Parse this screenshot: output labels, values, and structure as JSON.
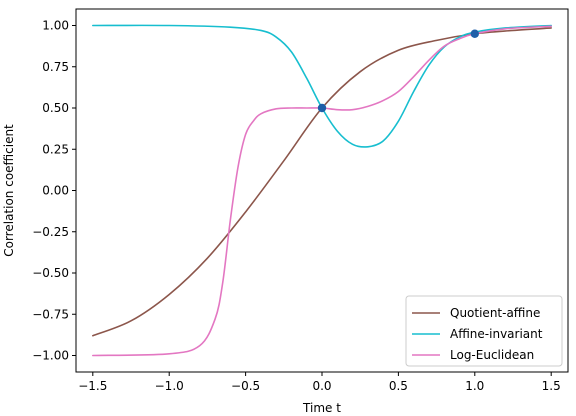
{
  "chart_data": {
    "type": "line",
    "title": "",
    "xlabel": "Time t",
    "ylabel": "Correlation coefficient",
    "xlim": [
      -1.61,
      1.61
    ],
    "ylim": [
      -1.1,
      1.1
    ],
    "xticks": [
      -1.5,
      -1.0,
      -0.5,
      0.0,
      0.5,
      1.0,
      1.5
    ],
    "xtick_labels": [
      "−1.5",
      "−1.0",
      "−0.5",
      "0.0",
      "0.5",
      "1.0",
      "1.5"
    ],
    "yticks": [
      -1.0,
      -0.75,
      -0.5,
      -0.25,
      0.0,
      0.25,
      0.5,
      0.75,
      1.0
    ],
    "ytick_labels": [
      "−1.00",
      "−0.75",
      "−0.50",
      "−0.25",
      "0.00",
      "0.25",
      "0.50",
      "0.75",
      "1.00"
    ],
    "grid": false,
    "legend_position": "bottom-right",
    "series": [
      {
        "name": "Quotient-affine",
        "color": "#8c564b",
        "x": [
          -1.5,
          -1.25,
          -1.0,
          -0.75,
          -0.5,
          -0.25,
          0.0,
          0.25,
          0.5,
          0.75,
          1.0,
          1.25,
          1.5
        ],
        "y": [
          -0.88,
          -0.79,
          -0.63,
          -0.41,
          -0.13,
          0.18,
          0.5,
          0.72,
          0.85,
          0.91,
          0.95,
          0.97,
          0.985
        ]
      },
      {
        "name": "Affine-invariant",
        "color": "#17becf",
        "x": [
          -1.5,
          -1.0,
          -0.6,
          -0.4,
          -0.3,
          -0.2,
          -0.1,
          0.0,
          0.1,
          0.2,
          0.3,
          0.4,
          0.5,
          0.6,
          0.7,
          0.8,
          0.9,
          1.0,
          1.2,
          1.5
        ],
        "y": [
          1.0,
          1.0,
          0.99,
          0.97,
          0.93,
          0.84,
          0.68,
          0.5,
          0.36,
          0.28,
          0.265,
          0.3,
          0.42,
          0.6,
          0.76,
          0.87,
          0.93,
          0.96,
          0.985,
          1.0
        ]
      },
      {
        "name": "Log-Euclidean",
        "color": "#e377c2",
        "x": [
          -1.5,
          -1.0,
          -0.8,
          -0.7,
          -0.65,
          -0.6,
          -0.55,
          -0.5,
          -0.45,
          -0.4,
          -0.3,
          -0.2,
          -0.1,
          0.0,
          0.1,
          0.2,
          0.3,
          0.4,
          0.5,
          0.6,
          0.7,
          0.8,
          0.9,
          1.0,
          1.2,
          1.5
        ],
        "y": [
          -1.0,
          -0.99,
          -0.94,
          -0.78,
          -0.56,
          -0.18,
          0.14,
          0.34,
          0.42,
          0.465,
          0.495,
          0.5,
          0.5,
          0.5,
          0.49,
          0.49,
          0.51,
          0.545,
          0.6,
          0.69,
          0.79,
          0.875,
          0.92,
          0.95,
          0.98,
          0.995
        ]
      }
    ],
    "markers": {
      "color": "#1f5fa8",
      "points": [
        {
          "x": 0.0,
          "y": 0.5
        },
        {
          "x": 1.0,
          "y": 0.95
        }
      ]
    }
  }
}
